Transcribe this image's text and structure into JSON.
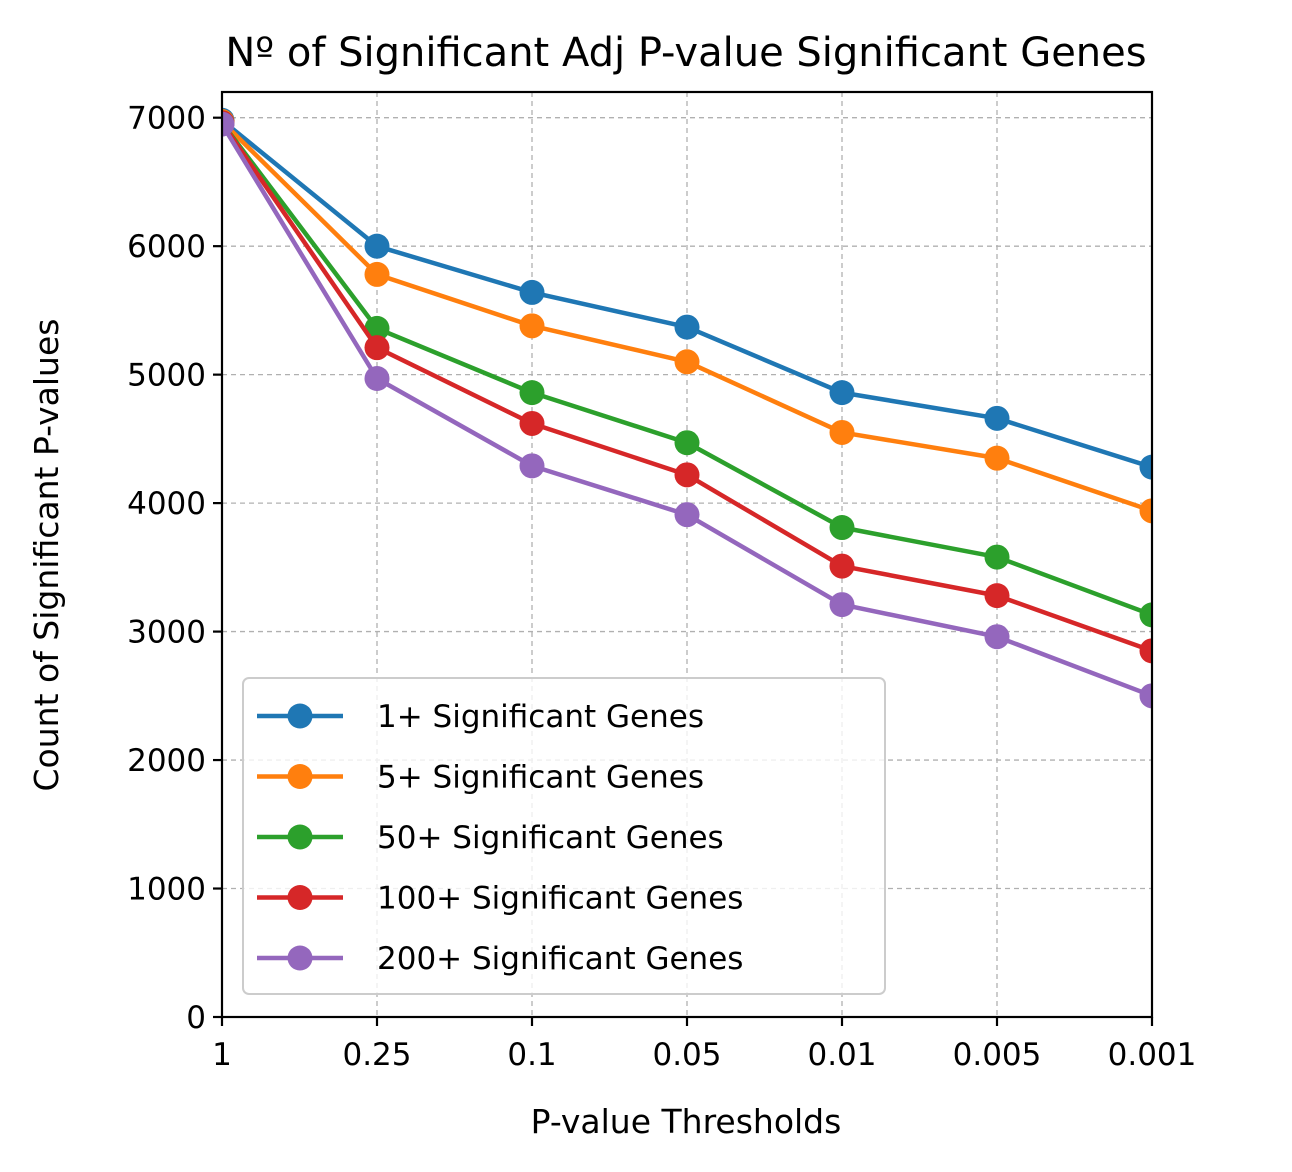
{
  "chart_data": {
    "type": "line",
    "title": "Nº of Significant Adj P-value Significant Genes",
    "xlabel": "P-value Thresholds",
    "ylabel": "Count of Significant P-values",
    "categories": [
      "1",
      "0.25",
      "0.1",
      "0.05",
      "0.01",
      "0.005",
      "0.001"
    ],
    "ylim": [
      0,
      7200
    ],
    "yticks": [
      "0",
      "1000",
      "2000",
      "3000",
      "4000",
      "5000",
      "6000",
      "7000"
    ],
    "grid": true,
    "legend_position": "lower-left",
    "marker": "circle",
    "series": [
      {
        "name": "1+ Significant Genes",
        "color": "#1f77b4",
        "values": [
          6980,
          6000,
          5640,
          5370,
          4860,
          4660,
          4280
        ]
      },
      {
        "name": "5+ Significant Genes",
        "color": "#ff7f0e",
        "values": [
          6970,
          5780,
          5380,
          5100,
          4550,
          4350,
          3940
        ]
      },
      {
        "name": "50+ Significant Genes",
        "color": "#2ca02c",
        "values": [
          6960,
          5360,
          4860,
          4470,
          3810,
          3580,
          3130
        ]
      },
      {
        "name": "100+ Significant Genes",
        "color": "#d62728",
        "values": [
          6960,
          5210,
          4620,
          4220,
          3510,
          3280,
          2850
        ]
      },
      {
        "name": "200+ Significant Genes",
        "color": "#9467bd",
        "values": [
          6950,
          4970,
          4290,
          3910,
          3210,
          2960,
          2500
        ]
      }
    ]
  }
}
